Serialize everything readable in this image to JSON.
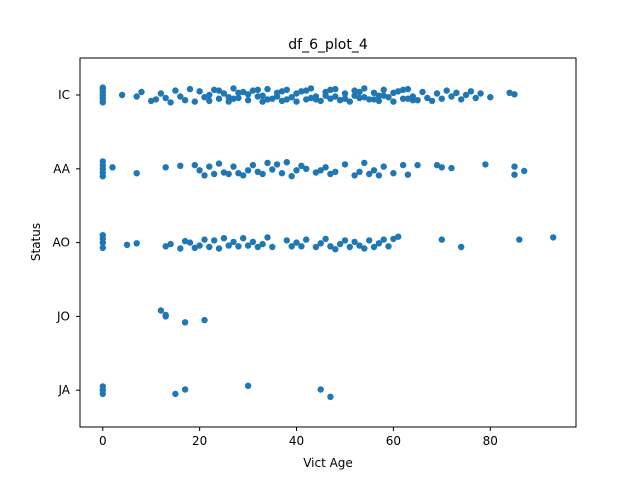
{
  "chart_data": {
    "type": "scatter",
    "title": "df_6_plot_4",
    "xlabel": "Vict Age",
    "ylabel": "Status",
    "xlim": [
      -4.7,
      97.7
    ],
    "x_ticks": [
      0,
      20,
      40,
      60,
      80
    ],
    "categories": [
      "IC",
      "AA",
      "AO",
      "JO",
      "JA"
    ],
    "grid": false,
    "marker_color": "#1f77b4",
    "series": [
      {
        "category": "IC",
        "points": [
          [
            0,
            -0.08
          ],
          [
            0,
            -0.04
          ],
          [
            0,
            0.0
          ],
          [
            0,
            0.04
          ],
          [
            0,
            0.08
          ],
          [
            0,
            -0.1
          ],
          [
            0,
            0.1
          ],
          [
            4,
            0.0
          ],
          [
            7,
            0.02
          ],
          [
            8,
            -0.04
          ],
          [
            10,
            0.08
          ],
          [
            11,
            0.06
          ],
          [
            12,
            -0.02
          ],
          [
            13,
            0.04
          ],
          [
            14,
            0.1
          ],
          [
            15,
            -0.06
          ],
          [
            16,
            0.02
          ],
          [
            17,
            0.07
          ],
          [
            18,
            -0.08
          ],
          [
            19,
            0.09
          ],
          [
            20,
            -0.05
          ],
          [
            21,
            0.03
          ],
          [
            22,
            0.08
          ],
          [
            23,
            -0.07
          ],
          [
            24,
            0.05
          ],
          [
            25,
            -0.02
          ],
          [
            26,
            0.09
          ],
          [
            27,
            -0.09
          ],
          [
            28,
            0.04
          ],
          [
            29,
            -0.04
          ],
          [
            30,
            0.07
          ],
          [
            31,
            -0.06
          ],
          [
            32,
            0.02
          ],
          [
            33,
            0.09
          ],
          [
            34,
            -0.08
          ],
          [
            35,
            0.05
          ],
          [
            36,
            -0.03
          ],
          [
            37,
            0.08
          ],
          [
            38,
            -0.07
          ],
          [
            39,
            0.03
          ],
          [
            40,
            0.09
          ],
          [
            41,
            -0.05
          ],
          [
            42,
            0.06
          ],
          [
            43,
            -0.09
          ],
          [
            44,
            0.02
          ],
          [
            45,
            0.08
          ],
          [
            46,
            -0.04
          ],
          [
            47,
            0.05
          ],
          [
            48,
            -0.08
          ],
          [
            49,
            0.07
          ],
          [
            50,
            -0.02
          ],
          [
            51,
            0.09
          ],
          [
            52,
            -0.06
          ],
          [
            53,
            0.04
          ],
          [
            54,
            -0.09
          ],
          [
            55,
            0.06
          ],
          [
            56,
            -0.03
          ],
          [
            57,
            0.08
          ],
          [
            58,
            -0.07
          ],
          [
            59,
            0.03
          ],
          [
            60,
            0.09
          ],
          [
            61,
            -0.05
          ],
          [
            62,
            0.05
          ],
          [
            63,
            -0.08
          ],
          [
            64,
            0.02
          ],
          [
            65,
            0.07
          ],
          [
            66,
            -0.04
          ],
          [
            67,
            0.04
          ],
          [
            68,
            0.08
          ],
          [
            69,
            -0.02
          ],
          [
            70,
            0.05
          ],
          [
            71,
            -0.06
          ],
          [
            72,
            0.02
          ],
          [
            73,
            -0.03
          ],
          [
            74,
            0.06
          ],
          [
            75,
            0.0
          ],
          [
            76,
            -0.05
          ],
          [
            77,
            0.04
          ],
          [
            78,
            -0.02
          ],
          [
            80,
            0.03
          ],
          [
            84,
            -0.03
          ],
          [
            85,
            -0.01
          ],
          [
            22,
            0.0
          ],
          [
            24,
            -0.06
          ],
          [
            26,
            0.03
          ],
          [
            28,
            -0.03
          ],
          [
            30,
            -0.01
          ],
          [
            32,
            -0.07
          ],
          [
            34,
            0.06
          ],
          [
            36,
            0.02
          ],
          [
            38,
            0.06
          ],
          [
            40,
            -0.02
          ],
          [
            42,
            -0.06
          ],
          [
            44,
            0.06
          ],
          [
            46,
            0.01
          ],
          [
            48,
            0.02
          ],
          [
            50,
            0.05
          ],
          [
            52,
            0.01
          ],
          [
            54,
            0.03
          ],
          [
            56,
            0.06
          ],
          [
            58,
            0.01
          ],
          [
            60,
            -0.03
          ],
          [
            62,
            -0.07
          ],
          [
            64,
            0.07
          ],
          [
            27,
            0.05
          ],
          [
            33,
            0.01
          ],
          [
            37,
            -0.05
          ],
          [
            43,
            0.04
          ],
          [
            47,
            -0.07
          ],
          [
            53,
            -0.04
          ],
          [
            57,
            0.01
          ],
          [
            63,
            0.05
          ]
        ]
      },
      {
        "category": "AA",
        "points": [
          [
            0,
            -0.1
          ],
          [
            0,
            -0.05
          ],
          [
            0,
            0.0
          ],
          [
            0,
            0.05
          ],
          [
            0,
            0.1
          ],
          [
            2,
            -0.02
          ],
          [
            7,
            0.06
          ],
          [
            13,
            -0.02
          ],
          [
            16,
            -0.04
          ],
          [
            19,
            -0.05
          ],
          [
            20,
            0.02
          ],
          [
            21,
            0.09
          ],
          [
            22,
            -0.03
          ],
          [
            23,
            0.07
          ],
          [
            24,
            -0.07
          ],
          [
            25,
            0.05
          ],
          [
            26,
            0.07
          ],
          [
            27,
            -0.03
          ],
          [
            28,
            0.06
          ],
          [
            29,
            0.09
          ],
          [
            30,
            0.02
          ],
          [
            31,
            -0.05
          ],
          [
            32,
            0.04
          ],
          [
            33,
            0.07
          ],
          [
            34,
            -0.08
          ],
          [
            35,
            0.01
          ],
          [
            36,
            -0.06
          ],
          [
            37,
            0.06
          ],
          [
            38,
            -0.09
          ],
          [
            39,
            0.1
          ],
          [
            40,
            0.02
          ],
          [
            41,
            -0.04
          ],
          [
            42,
            0.0
          ],
          [
            44,
            0.05
          ],
          [
            45,
            0.02
          ],
          [
            46,
            -0.02
          ],
          [
            47,
            0.07
          ],
          [
            48,
            0.04
          ],
          [
            50,
            -0.06
          ],
          [
            52,
            0.09
          ],
          [
            53,
            0.04
          ],
          [
            54,
            -0.08
          ],
          [
            55,
            0.07
          ],
          [
            56,
            0.02
          ],
          [
            57,
            0.09
          ],
          [
            58,
            -0.03
          ],
          [
            60,
            0.06
          ],
          [
            62,
            -0.05
          ],
          [
            63,
            0.08
          ],
          [
            65,
            -0.05
          ],
          [
            69,
            -0.05
          ],
          [
            70,
            -0.02
          ],
          [
            72,
            -0.01
          ],
          [
            79,
            -0.06
          ],
          [
            85,
            0.08
          ],
          [
            85,
            -0.03
          ],
          [
            87,
            0.03
          ]
        ]
      },
      {
        "category": "AO",
        "points": [
          [
            0,
            -0.1
          ],
          [
            0,
            -0.05
          ],
          [
            0,
            0.0
          ],
          [
            0,
            0.07
          ],
          [
            5,
            0.03
          ],
          [
            7,
            0.01
          ],
          [
            13,
            0.05
          ],
          [
            14,
            0.02
          ],
          [
            16,
            0.08
          ],
          [
            17,
            -0.02
          ],
          [
            18,
            0.0
          ],
          [
            19,
            0.07
          ],
          [
            20,
            0.04
          ],
          [
            21,
            -0.04
          ],
          [
            22,
            0.06
          ],
          [
            23,
            -0.03
          ],
          [
            24,
            0.08
          ],
          [
            25,
            -0.06
          ],
          [
            26,
            0.04
          ],
          [
            27,
            -0.01
          ],
          [
            28,
            0.05
          ],
          [
            29,
            -0.06
          ],
          [
            30,
            0.04
          ],
          [
            31,
            -0.01
          ],
          [
            32,
            0.06
          ],
          [
            33,
            0.02
          ],
          [
            34,
            -0.07
          ],
          [
            35,
            0.06
          ],
          [
            38,
            -0.03
          ],
          [
            39,
            0.05
          ],
          [
            40,
            0.0
          ],
          [
            41,
            0.05
          ],
          [
            42,
            -0.04
          ],
          [
            44,
            0.06
          ],
          [
            45,
            0.01
          ],
          [
            46,
            -0.05
          ],
          [
            47,
            0.05
          ],
          [
            48,
            0.09
          ],
          [
            49,
            0.02
          ],
          [
            50,
            -0.03
          ],
          [
            51,
            0.06
          ],
          [
            52,
            -0.01
          ],
          [
            53,
            0.04
          ],
          [
            54,
            0.08
          ],
          [
            55,
            -0.03
          ],
          [
            56,
            0.06
          ],
          [
            57,
            0.01
          ],
          [
            58,
            -0.04
          ],
          [
            59,
            0.05
          ],
          [
            60,
            -0.05
          ],
          [
            61,
            -0.08
          ],
          [
            70,
            -0.04
          ],
          [
            74,
            0.06
          ],
          [
            86,
            -0.04
          ],
          [
            93,
            -0.07
          ]
        ]
      },
      {
        "category": "JO",
        "points": [
          [
            12,
            -0.08
          ],
          [
            13,
            -0.02
          ],
          [
            13,
            0.0
          ],
          [
            17,
            0.08
          ],
          [
            21,
            0.05
          ]
        ]
      },
      {
        "category": "JA",
        "points": [
          [
            0,
            0.05
          ],
          [
            0,
            0.0
          ],
          [
            0,
            -0.05
          ],
          [
            15,
            0.05
          ],
          [
            17,
            -0.01
          ],
          [
            30,
            -0.06
          ],
          [
            45,
            -0.01
          ],
          [
            47,
            0.09
          ]
        ]
      }
    ]
  }
}
